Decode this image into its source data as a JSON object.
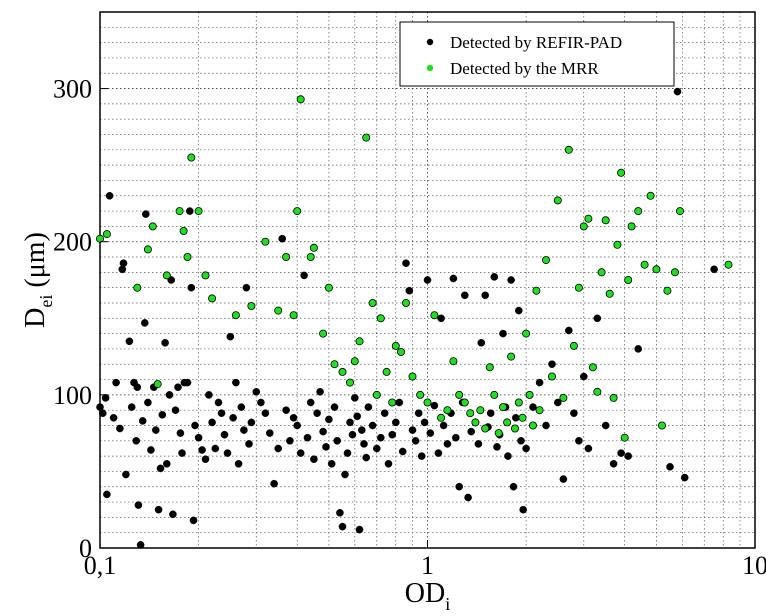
{
  "chart_data": {
    "type": "scatter",
    "title": "",
    "xlabel": {
      "main": "OD",
      "sub": "i"
    },
    "ylabel": {
      "main": "D",
      "sub": "ei",
      "unit": " (μm)"
    },
    "xscale": "log",
    "xlim": [
      0.1,
      10
    ],
    "ylim": [
      0,
      350
    ],
    "xticks": [
      {
        "value": 0.1,
        "label": "0,1"
      },
      {
        "value": 1,
        "label": "1"
      },
      {
        "value": 10,
        "label": "10"
      }
    ],
    "yticks": [
      {
        "value": 0,
        "label": "0"
      },
      {
        "value": 100,
        "label": "100"
      },
      {
        "value": 200,
        "label": "200"
      },
      {
        "value": 300,
        "label": "300"
      }
    ],
    "grid": true,
    "legend_position": "top-right",
    "series": [
      {
        "name": "Detected by REFIR-PAD",
        "color": "#000000",
        "points": [
          [
            0.1,
            92
          ],
          [
            0.102,
            88
          ],
          [
            0.104,
            98
          ],
          [
            0.105,
            35
          ],
          [
            0.107,
            230
          ],
          [
            0.11,
            85
          ],
          [
            0.112,
            108
          ],
          [
            0.115,
            78
          ],
          [
            0.117,
            182
          ],
          [
            0.118,
            186
          ],
          [
            0.12,
            48
          ],
          [
            0.123,
            135
          ],
          [
            0.125,
            92
          ],
          [
            0.127,
            108
          ],
          [
            0.129,
            70
          ],
          [
            0.13,
            105
          ],
          [
            0.131,
            28
          ],
          [
            0.133,
            2
          ],
          [
            0.135,
            83
          ],
          [
            0.137,
            147
          ],
          [
            0.138,
            218
          ],
          [
            0.14,
            95
          ],
          [
            0.143,
            64
          ],
          [
            0.146,
            105
          ],
          [
            0.148,
            77
          ],
          [
            0.151,
            25
          ],
          [
            0.153,
            52
          ],
          [
            0.155,
            87
          ],
          [
            0.158,
            134
          ],
          [
            0.16,
            55
          ],
          [
            0.163,
            100
          ],
          [
            0.165,
            175
          ],
          [
            0.167,
            22
          ],
          [
            0.17,
            90
          ],
          [
            0.173,
            105
          ],
          [
            0.176,
            75
          ],
          [
            0.178,
            62
          ],
          [
            0.181,
            108
          ],
          [
            0.185,
            108
          ],
          [
            0.188,
            220
          ],
          [
            0.19,
            170
          ],
          [
            0.193,
            18
          ],
          [
            0.195,
            80
          ],
          [
            0.2,
            72
          ],
          [
            0.205,
            64
          ],
          [
            0.21,
            58
          ],
          [
            0.215,
            100
          ],
          [
            0.22,
            82
          ],
          [
            0.225,
            65
          ],
          [
            0.23,
            95
          ],
          [
            0.235,
            88
          ],
          [
            0.24,
            74
          ],
          [
            0.245,
            62
          ],
          [
            0.25,
            138
          ],
          [
            0.255,
            85
          ],
          [
            0.26,
            108
          ],
          [
            0.265,
            55
          ],
          [
            0.27,
            92
          ],
          [
            0.275,
            77
          ],
          [
            0.28,
            170
          ],
          [
            0.285,
            68
          ],
          [
            0.29,
            82
          ],
          [
            0.3,
            102
          ],
          [
            0.31,
            95
          ],
          [
            0.32,
            88
          ],
          [
            0.33,
            75
          ],
          [
            0.34,
            42
          ],
          [
            0.35,
            65
          ],
          [
            0.36,
            202
          ],
          [
            0.37,
            90
          ],
          [
            0.38,
            70
          ],
          [
            0.39,
            85
          ],
          [
            0.4,
            80
          ],
          [
            0.41,
            62
          ],
          [
            0.42,
            178
          ],
          [
            0.43,
            72
          ],
          [
            0.44,
            95
          ],
          [
            0.45,
            58
          ],
          [
            0.46,
            88
          ],
          [
            0.47,
            102
          ],
          [
            0.48,
            76
          ],
          [
            0.49,
            66
          ],
          [
            0.5,
            84
          ],
          [
            0.51,
            55
          ],
          [
            0.52,
            92
          ],
          [
            0.53,
            70
          ],
          [
            0.54,
            23
          ],
          [
            0.55,
            14
          ],
          [
            0.56,
            48
          ],
          [
            0.57,
            62
          ],
          [
            0.58,
            82
          ],
          [
            0.59,
            74
          ],
          [
            0.6,
            98
          ],
          [
            0.61,
            86
          ],
          [
            0.62,
            12
          ],
          [
            0.63,
            77
          ],
          [
            0.64,
            68
          ],
          [
            0.65,
            59
          ],
          [
            0.66,
            92
          ],
          [
            0.68,
            80
          ],
          [
            0.7,
            65
          ],
          [
            0.72,
            72
          ],
          [
            0.74,
            88
          ],
          [
            0.76,
            55
          ],
          [
            0.78,
            74
          ],
          [
            0.8,
            82
          ],
          [
            0.82,
            95
          ],
          [
            0.84,
            63
          ],
          [
            0.86,
            186
          ],
          [
            0.88,
            168
          ],
          [
            0.9,
            77
          ],
          [
            0.92,
            70
          ],
          [
            0.94,
            88
          ],
          [
            0.96,
            60
          ],
          [
            0.98,
            82
          ],
          [
            1.0,
            175
          ],
          [
            1.02,
            75
          ],
          [
            1.05,
            93
          ],
          [
            1.08,
            62
          ],
          [
            1.1,
            150
          ],
          [
            1.12,
            80
          ],
          [
            1.15,
            68
          ],
          [
            1.18,
            88
          ],
          [
            1.2,
            176
          ],
          [
            1.22,
            72
          ],
          [
            1.25,
            40
          ],
          [
            1.28,
            95
          ],
          [
            1.3,
            165
          ],
          [
            1.33,
            33
          ],
          [
            1.36,
            76
          ],
          [
            1.4,
            82
          ],
          [
            1.43,
            68
          ],
          [
            1.46,
            134
          ],
          [
            1.5,
            165
          ],
          [
            1.53,
            79
          ],
          [
            1.56,
            88
          ],
          [
            1.6,
            177
          ],
          [
            1.63,
            66
          ],
          [
            1.66,
            74
          ],
          [
            1.7,
            140
          ],
          [
            1.73,
            92
          ],
          [
            1.76,
            60
          ],
          [
            1.8,
            175
          ],
          [
            1.83,
            40
          ],
          [
            1.86,
            85
          ],
          [
            1.9,
            155
          ],
          [
            1.93,
            70
          ],
          [
            1.96,
            25
          ],
          [
            2.0,
            65
          ],
          [
            2.1,
            92
          ],
          [
            2.2,
            108
          ],
          [
            2.3,
            80
          ],
          [
            2.4,
            120
          ],
          [
            2.5,
            95
          ],
          [
            2.6,
            45
          ],
          [
            2.7,
            142
          ],
          [
            2.8,
            88
          ],
          [
            2.9,
            70
          ],
          [
            3.0,
            112
          ],
          [
            3.1,
            65
          ],
          [
            3.3,
            150
          ],
          [
            3.5,
            80
          ],
          [
            3.7,
            55
          ],
          [
            3.9,
            62
          ],
          [
            4.1,
            60
          ],
          [
            4.4,
            130
          ],
          [
            5.5,
            53
          ],
          [
            5.8,
            298
          ],
          [
            6.1,
            46
          ],
          [
            7.5,
            182
          ]
        ]
      },
      {
        "name": "Detected by the MRR",
        "color": "#22dd22",
        "points": [
          [
            0.1,
            202
          ],
          [
            0.105,
            205
          ],
          [
            0.13,
            170
          ],
          [
            0.14,
            195
          ],
          [
            0.145,
            210
          ],
          [
            0.15,
            107
          ],
          [
            0.16,
            178
          ],
          [
            0.175,
            220
          ],
          [
            0.18,
            207
          ],
          [
            0.185,
            190
          ],
          [
            0.19,
            255
          ],
          [
            0.2,
            220
          ],
          [
            0.21,
            178
          ],
          [
            0.22,
            163
          ],
          [
            0.26,
            152
          ],
          [
            0.29,
            158
          ],
          [
            0.32,
            200
          ],
          [
            0.35,
            155
          ],
          [
            0.37,
            190
          ],
          [
            0.39,
            152
          ],
          [
            0.4,
            220
          ],
          [
            0.41,
            293
          ],
          [
            0.44,
            190
          ],
          [
            0.45,
            196
          ],
          [
            0.48,
            140
          ],
          [
            0.5,
            170
          ],
          [
            0.52,
            120
          ],
          [
            0.55,
            115
          ],
          [
            0.58,
            108
          ],
          [
            0.6,
            122
          ],
          [
            0.62,
            135
          ],
          [
            0.65,
            268
          ],
          [
            0.68,
            160
          ],
          [
            0.7,
            100
          ],
          [
            0.72,
            150
          ],
          [
            0.75,
            115
          ],
          [
            0.78,
            95
          ],
          [
            0.8,
            132
          ],
          [
            0.83,
            128
          ],
          [
            0.86,
            160
          ],
          [
            0.9,
            112
          ],
          [
            0.95,
            100
          ],
          [
            1.0,
            95
          ],
          [
            1.05,
            152
          ],
          [
            1.1,
            85
          ],
          [
            1.15,
            90
          ],
          [
            1.2,
            122
          ],
          [
            1.25,
            100
          ],
          [
            1.3,
            95
          ],
          [
            1.35,
            88
          ],
          [
            1.4,
            82
          ],
          [
            1.45,
            90
          ],
          [
            1.5,
            78
          ],
          [
            1.55,
            118
          ],
          [
            1.6,
            100
          ],
          [
            1.65,
            75
          ],
          [
            1.7,
            92
          ],
          [
            1.75,
            82
          ],
          [
            1.8,
            125
          ],
          [
            1.85,
            78
          ],
          [
            1.9,
            95
          ],
          [
            1.95,
            85
          ],
          [
            2.0,
            140
          ],
          [
            2.05,
            100
          ],
          [
            2.1,
            80
          ],
          [
            2.15,
            168
          ],
          [
            2.2,
            90
          ],
          [
            2.3,
            188
          ],
          [
            2.4,
            112
          ],
          [
            2.5,
            227
          ],
          [
            2.6,
            98
          ],
          [
            2.7,
            260
          ],
          [
            2.8,
            132
          ],
          [
            2.9,
            170
          ],
          [
            3.0,
            210
          ],
          [
            3.1,
            215
          ],
          [
            3.2,
            118
          ],
          [
            3.3,
            102
          ],
          [
            3.4,
            180
          ],
          [
            3.5,
            214
          ],
          [
            3.6,
            166
          ],
          [
            3.7,
            98
          ],
          [
            3.8,
            198
          ],
          [
            3.9,
            245
          ],
          [
            4.0,
            72
          ],
          [
            4.1,
            175
          ],
          [
            4.2,
            210
          ],
          [
            4.4,
            220
          ],
          [
            4.6,
            185
          ],
          [
            4.8,
            230
          ],
          [
            5.0,
            182
          ],
          [
            5.2,
            80
          ],
          [
            5.4,
            168
          ],
          [
            5.7,
            180
          ],
          [
            5.9,
            220
          ],
          [
            8.3,
            185
          ]
        ]
      }
    ]
  }
}
